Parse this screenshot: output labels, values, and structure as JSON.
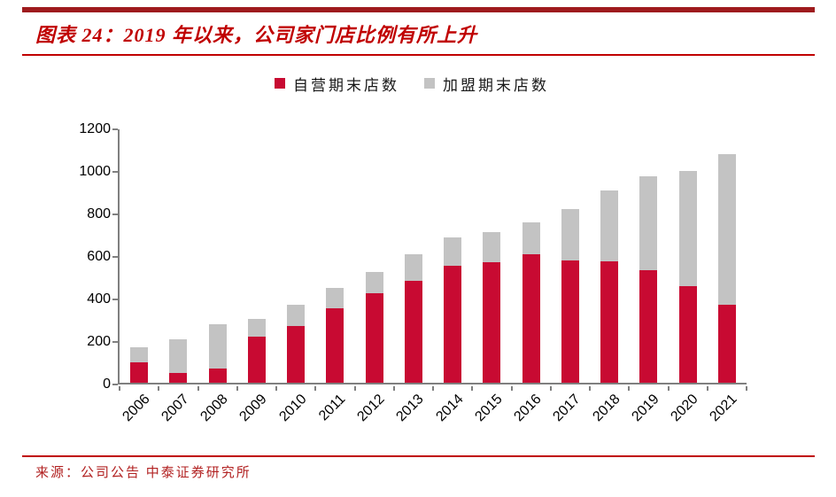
{
  "header": {
    "title": "图表 24：2019 年以来，公司家门店比例有所上升"
  },
  "chart_data": {
    "type": "bar",
    "stacked": true,
    "title": "图表 24：2019 年以来，公司家门店比例有所上升",
    "categories": [
      "2006",
      "2007",
      "2008",
      "2009",
      "2010",
      "2011",
      "2012",
      "2013",
      "2014",
      "2015",
      "2016",
      "2017",
      "2018",
      "2019",
      "2020",
      "2021"
    ],
    "series": [
      {
        "name": "自营期末店数",
        "color": "#C80A32",
        "values": [
          95,
          45,
          65,
          215,
          265,
          350,
          420,
          480,
          550,
          565,
          605,
          575,
          570,
          530,
          455,
          365
        ]
      },
      {
        "name": "加盟期末店数",
        "color": "#C3C3C3",
        "values": [
          70,
          160,
          210,
          85,
          100,
          95,
          100,
          125,
          135,
          145,
          150,
          240,
          335,
          440,
          540,
          710
        ]
      }
    ],
    "totals": [
      165,
      205,
      275,
      300,
      365,
      445,
      520,
      605,
      685,
      710,
      755,
      815,
      905,
      970,
      995,
      1075
    ],
    "xlabel": "",
    "ylabel": "",
    "ylim": [
      0,
      1200
    ],
    "yticks": [
      0,
      200,
      400,
      600,
      800,
      1000,
      1200
    ],
    "grid": false,
    "legend_position": "top",
    "x_tick_rotation": 45
  },
  "footer": {
    "source": "来源：公司公告 中泰证券研究所"
  },
  "colors": {
    "bar_red": "#C80A32",
    "bar_gray": "#C3C3C3",
    "banner_red": "#9E1B1E",
    "title_red": "#C00000",
    "rule_red": "#C00000",
    "axis_gray": "#7F7F7F",
    "source_red": "#B22222"
  }
}
